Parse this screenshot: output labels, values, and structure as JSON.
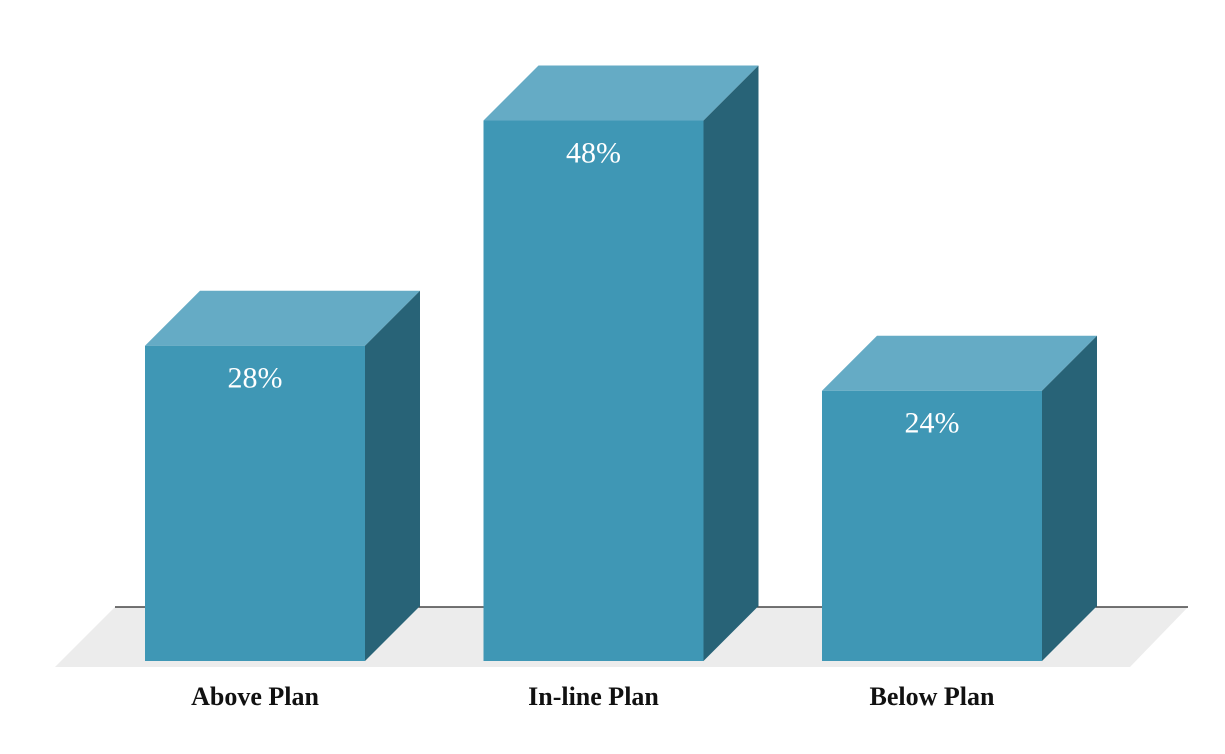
{
  "chart_data": {
    "type": "bar3d",
    "categories": [
      "Above Plan",
      "In-line Plan",
      "Below Plan"
    ],
    "values": [
      28,
      48,
      24
    ],
    "value_labels": [
      "28%",
      "48%",
      "24%"
    ],
    "color": "#3f97b5"
  }
}
